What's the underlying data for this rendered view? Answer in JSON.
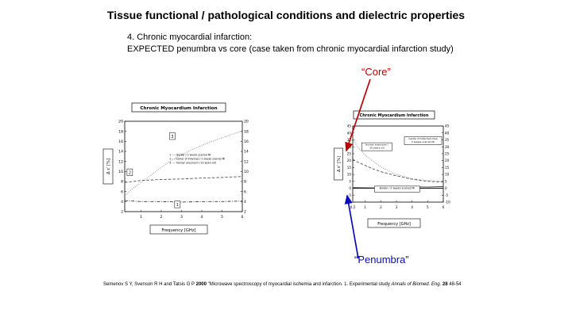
{
  "slide": {
    "title": "Tissue functional / pathological conditions and dielectric properties",
    "subtitle_line1": "4. Chronic myocardial infarction:",
    "subtitle_line2": "EXPECTED penumbra vs core (case taken from  chronic myocardial infarction study)"
  },
  "annotations": {
    "core_label": "“Core”",
    "core_color": "#c00000",
    "penumbra_label": "“Penumbra”",
    "penumbra_color": "#0a0ac0"
  },
  "citation": {
    "parts": [
      {
        "t": "Semenov S Y, Svenson R H and Tatsis G P "
      },
      {
        "t": "2000"
      },
      {
        "t": " \"Microwave spectroscopy of myocardial ischemia and infarction. 1. Experimental study "
      },
      {
        "t": "Annals of Biomed. Eng."
      },
      {
        "t": " 28"
      },
      {
        "t": " 48-54"
      }
    ]
  },
  "chart_data": [
    {
      "type": "line",
      "title": "Chronic Myocardium Infarction",
      "xlabel": "Frequency [GHz]",
      "ylabel": "Δ ε′ [%]",
      "xlim": [
        0.2,
        6
      ],
      "ylim": [
        2,
        20
      ],
      "xticks": [
        1,
        2,
        3,
        4,
        5,
        6
      ],
      "yticks": [
        2,
        4,
        6,
        8,
        10,
        12,
        14,
        16,
        18,
        20
      ],
      "legend": [
        "1 –··–  Border / 2 weeks scarred MI",
        "2 – –  Center of Infarcted / 2 weeks scarred MI",
        "3 ·····  Human aneurysm / 10 years old"
      ],
      "series": [
        {
          "name": "Human aneurysm / 10 years old",
          "label": "3",
          "label_xy": [
            2.55,
            17.0
          ],
          "style": "dotted",
          "color": "#777777",
          "x": [
            0.2,
            0.5,
            1,
            1.5,
            2,
            2.5,
            3,
            3.5,
            4,
            4.5,
            5,
            5.5,
            6
          ],
          "y": [
            5.0,
            6.3,
            7.8,
            9.3,
            10.8,
            12.2,
            13.3,
            14.3,
            15.2,
            16.0,
            16.7,
            17.4,
            18.0
          ]
        },
        {
          "name": "Center of Infarcted / 2 weeks scarred MI",
          "label": "2",
          "label_xy": [
            0.45,
            9.8
          ],
          "style": "dashed",
          "color": "#555555",
          "x": [
            0.2,
            1,
            2,
            3,
            4,
            5,
            6
          ],
          "y": [
            7.8,
            8.2,
            8.4,
            8.5,
            8.7,
            8.8,
            9.0
          ]
        },
        {
          "name": "Border / 2 weeks scarred MI",
          "label": "1",
          "label_xy": [
            2.8,
            3.4
          ],
          "style": "dashdot",
          "color": "#333333",
          "x": [
            0.2,
            1,
            2,
            3,
            4,
            5,
            6
          ],
          "y": [
            4.2,
            4.0,
            4.0,
            3.9,
            4.0,
            4.0,
            4.1
          ]
        }
      ]
    },
    {
      "type": "line",
      "title": "Chronic Myocardium Infarction",
      "xlabel": "Frequency [GHz]",
      "ylabel": "Δ ε″ [%]",
      "xlim": [
        0.2,
        6
      ],
      "ylim": [
        -10,
        45
      ],
      "xticks": [
        1,
        2,
        3,
        4,
        5,
        6
      ],
      "x_start_label": "0.2",
      "yticks": [
        -10,
        -5,
        0,
        5,
        10,
        15,
        20,
        25,
        30,
        35,
        40,
        45
      ],
      "zero_line": true,
      "legend_boxes": [
        {
          "lines": [
            "Human aneurysm /",
            "10 years old"
          ]
        },
        {
          "lines": [
            "Center of Infarcted Area",
            "2 weeks scarred MI"
          ]
        },
        {
          "lines": [
            "Border / 2 weeks scarred MI"
          ]
        }
      ],
      "series": [
        {
          "name": "Human aneurysm / 10 years old",
          "style": "dotted",
          "color": "#777777",
          "x": [
            0.2,
            0.5,
            1,
            1.5,
            2,
            2.5,
            3,
            4,
            5,
            6
          ],
          "y": [
            36,
            30,
            24,
            19.5,
            15.5,
            12.5,
            10,
            7,
            5.5,
            5
          ]
        },
        {
          "name": "Center of Infarcted Area / 2 weeks scarred MI",
          "style": "dashed",
          "color": "#555555",
          "x": [
            0.2,
            0.5,
            1,
            1.5,
            2,
            2.5,
            3,
            4,
            5,
            6
          ],
          "y": [
            21,
            19,
            16.5,
            14,
            12,
            10.5,
            9,
            6.5,
            5,
            4.5
          ]
        },
        {
          "name": "Border / 2 weeks scarred MI",
          "style": "solid",
          "color": "#333333",
          "x": [
            0.2,
            1,
            2,
            3,
            4,
            5,
            6
          ],
          "y": [
            0.5,
            0.3,
            0.2,
            0.6,
            1.0,
            0.8,
            1.2
          ]
        }
      ]
    }
  ]
}
